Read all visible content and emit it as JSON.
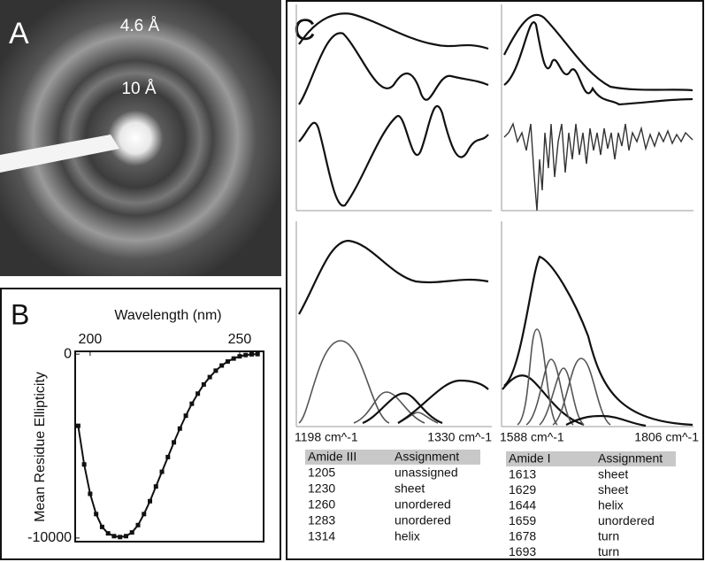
{
  "panel_labels": [
    "A",
    "B",
    "C"
  ],
  "diffraction": {
    "rings": [
      "4.6 Å",
      "10 Å"
    ]
  },
  "chart_data": {
    "type": "line",
    "x_label": "Wavelength (nm)",
    "y_label": "Mean Residue Ellipticity",
    "x": [
      196,
      198,
      200,
      202,
      204,
      206,
      208,
      210,
      212,
      214,
      216,
      218,
      220,
      222,
      224,
      226,
      228,
      230,
      232,
      234,
      236,
      238,
      240,
      242,
      244,
      246,
      248,
      250,
      252,
      254,
      256
    ],
    "values": [
      -3900,
      -6000,
      -7600,
      -8700,
      -9400,
      -9750,
      -9900,
      -9950,
      -9900,
      -9700,
      -9300,
      -8700,
      -8000,
      -7200,
      -6400,
      -5600,
      -4800,
      -4050,
      -3350,
      -2700,
      -2150,
      -1650,
      -1250,
      -900,
      -620,
      -400,
      -240,
      -120,
      -50,
      -10,
      0
    ],
    "color": "#111111",
    "xlim": [
      195,
      258
    ],
    "ylim": [
      -10200,
      150
    ],
    "xticks": [
      200,
      250
    ],
    "yticks": [
      0,
      -10000
    ]
  },
  "ftir": {
    "amide_iii_range": [
      "1198 cm^-1",
      "1330 cm^-1"
    ],
    "amide_i_range": [
      "1588 cm^-1",
      "1806 cm^-1"
    ]
  },
  "tables": [
    {
      "header": [
        "Amide III",
        "Assignment"
      ],
      "rows": [
        [
          "1205",
          "unassigned"
        ],
        [
          "1230",
          "sheet"
        ],
        [
          "1260",
          "unordered"
        ],
        [
          "1283",
          "unordered"
        ],
        [
          "1314",
          "helix"
        ]
      ]
    },
    {
      "header": [
        "Amide I",
        "Assignment"
      ],
      "rows": [
        [
          "1613",
          "sheet"
        ],
        [
          "1629",
          "sheet"
        ],
        [
          "1644",
          "helix"
        ],
        [
          "1659",
          "unordered"
        ],
        [
          "1678",
          "turn"
        ],
        [
          "1693",
          "turn"
        ]
      ]
    }
  ]
}
